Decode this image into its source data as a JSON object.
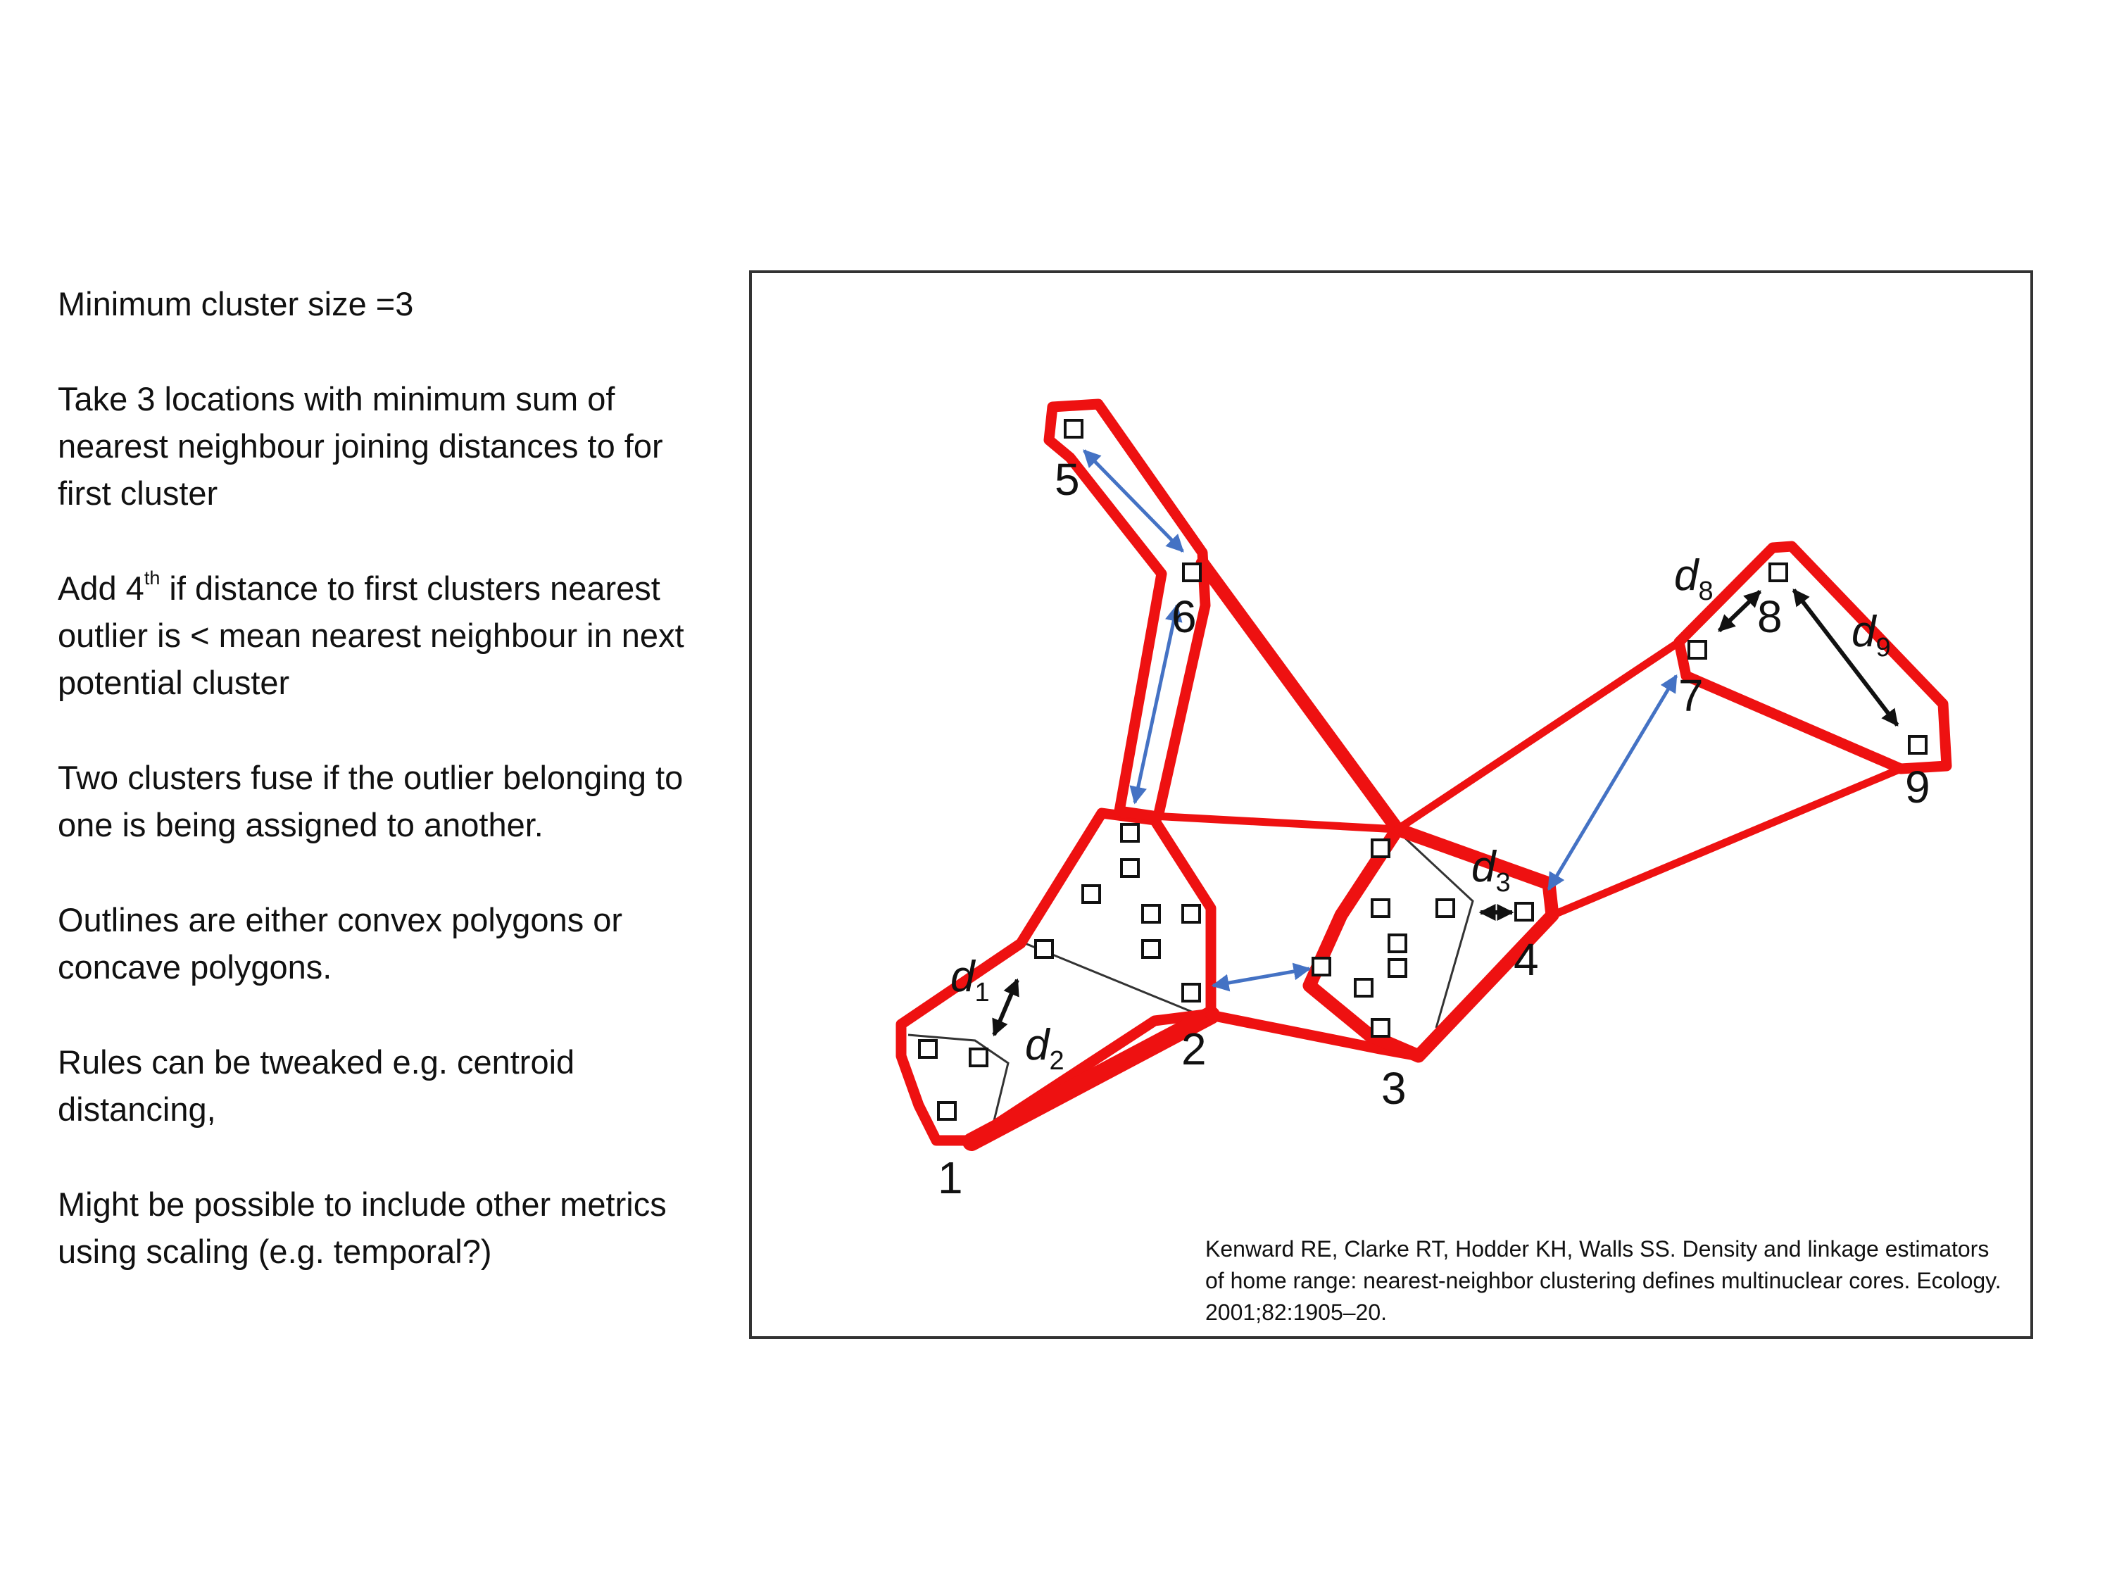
{
  "notes": {
    "p1": "Minimum cluster size =3",
    "p2": "Take 3 locations with minimum sum of nearest neighbour joining distances to for first cluster",
    "p3_before": "Add 4",
    "p3_sup": "th",
    "p3_after": " if distance to first clusters nearest outlier is < mean nearest neighbour in next potential cluster",
    "p4": "Two clusters fuse if the outlier belonging to one is being assigned to another.",
    "p5": "Outlines are either convex polygons or concave polygons.",
    "p6": "Rules can be tweaked e.g. centroid distancing,",
    "p7": "Might be possible to include other metrics using scaling (e.g. temporal?)"
  },
  "citation": "Kenward RE, Clarke RT, Hodder KH, Walls SS. Density and linkage estimators of home range: nearest-neighbor clustering defines multinuclear cores. Ecology. 2001;82:1905–20.",
  "diagram": {
    "cluster_labels": [
      "1",
      "2",
      "3",
      "4",
      "5",
      "6",
      "7",
      "8",
      "9"
    ],
    "distance_labels": [
      {
        "letter": "d",
        "sub": "1"
      },
      {
        "letter": "d",
        "sub": "2"
      },
      {
        "letter": "d",
        "sub": "3"
      },
      {
        "letter": "d",
        "sub": "8"
      },
      {
        "letter": "d",
        "sub": "9"
      }
    ],
    "colors": {
      "outline": "#ee1111",
      "nn_arrow": "#4472c4",
      "d_arrow": "#111111",
      "point": "#111111"
    }
  }
}
